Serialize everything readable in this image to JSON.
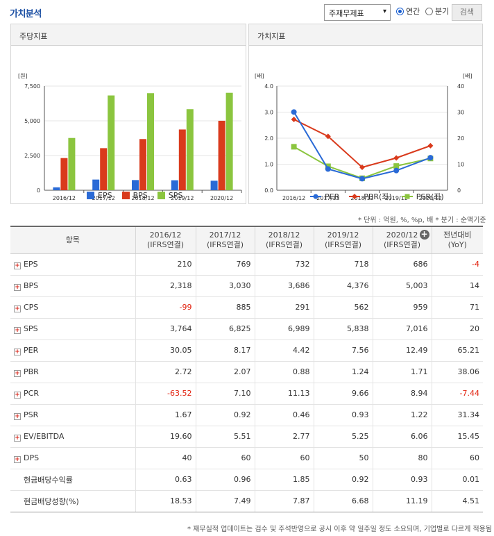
{
  "header": {
    "title": "가치분석",
    "select_value": "주재무제표",
    "radio_annual": "연간",
    "radio_quarter": "분기",
    "search_button": "검색"
  },
  "colors": {
    "eps": "#2a6ad6",
    "bps": "#d93a1c",
    "sps": "#8bc53f",
    "per": "#2a6ad6",
    "pbr": "#d93a1c",
    "psr": "#8bc53f",
    "negative": "#e2220f"
  },
  "chart_data": [
    {
      "type": "bar",
      "title": "주당지표",
      "ylabel": "[원]",
      "categories": [
        "2016/12",
        "2017/12",
        "2018/12",
        "2019/12",
        "2020/12"
      ],
      "ylim": [
        0,
        7500
      ],
      "yticks": [
        "7,500",
        "5,000",
        "2,500",
        "0"
      ],
      "series": [
        {
          "name": "EPS",
          "values": [
            210,
            769,
            732,
            718,
            686
          ]
        },
        {
          "name": "BPS",
          "values": [
            2318,
            3030,
            3686,
            4376,
            5003
          ]
        },
        {
          "name": "SPS",
          "values": [
            3764,
            6825,
            6989,
            5838,
            7016
          ]
        }
      ]
    },
    {
      "type": "line",
      "title": "가치지표",
      "ylabel_left": "[배]",
      "ylabel_right": "[배]",
      "categories": [
        "2016/12",
        "2017/12",
        "2018/12",
        "2019/12",
        "2020/12"
      ],
      "ylim_left": [
        0,
        4
      ],
      "ylim_right": [
        0,
        40
      ],
      "yticks_left": [
        "4.0",
        "3.0",
        "2.0",
        "1.0",
        "0.0"
      ],
      "yticks_right": [
        "40",
        "30",
        "20",
        "10",
        "0"
      ],
      "series": [
        {
          "name": "PER",
          "axis": "right",
          "values": [
            30.05,
            8.17,
            4.42,
            7.56,
            12.49
          ]
        },
        {
          "name": "PBR(좌)",
          "axis": "left",
          "values": [
            2.72,
            2.07,
            0.88,
            1.24,
            1.71
          ]
        },
        {
          "name": "PSR(좌)",
          "axis": "left",
          "values": [
            1.67,
            0.92,
            0.46,
            0.93,
            1.22
          ]
        }
      ]
    }
  ],
  "unit_note": "* 단위 : 억원, %, %p, 배    * 분기 : 순액기준",
  "table": {
    "headers": [
      {
        "l1": "항목",
        "l2": ""
      },
      {
        "l1": "2016/12",
        "l2": "(IFRS연결)"
      },
      {
        "l1": "2017/12",
        "l2": "(IFRS연결)"
      },
      {
        "l1": "2018/12",
        "l2": "(IFRS연결)"
      },
      {
        "l1": "2019/12",
        "l2": "(IFRS연결)"
      },
      {
        "l1": "2020/12",
        "l2": "(IFRS연결)"
      },
      {
        "l1": "전년대비",
        "l2": "(YoY)"
      }
    ],
    "rows": [
      {
        "label": "EPS",
        "expand": true,
        "values": [
          "210",
          "769",
          "732",
          "718",
          "686",
          "-4"
        ]
      },
      {
        "label": "BPS",
        "expand": true,
        "values": [
          "2,318",
          "3,030",
          "3,686",
          "4,376",
          "5,003",
          "14"
        ]
      },
      {
        "label": "CPS",
        "expand": true,
        "values": [
          "-99",
          "885",
          "291",
          "562",
          "959",
          "71"
        ]
      },
      {
        "label": "SPS",
        "expand": true,
        "values": [
          "3,764",
          "6,825",
          "6,989",
          "5,838",
          "7,016",
          "20"
        ]
      },
      {
        "label": "PER",
        "expand": true,
        "values": [
          "30.05",
          "8.17",
          "4.42",
          "7.56",
          "12.49",
          "65.21"
        ]
      },
      {
        "label": "PBR",
        "expand": true,
        "values": [
          "2.72",
          "2.07",
          "0.88",
          "1.24",
          "1.71",
          "38.06"
        ]
      },
      {
        "label": "PCR",
        "expand": true,
        "values": [
          "-63.52",
          "7.10",
          "11.13",
          "9.66",
          "8.94",
          "-7.44"
        ]
      },
      {
        "label": "PSR",
        "expand": true,
        "values": [
          "1.67",
          "0.92",
          "0.46",
          "0.93",
          "1.22",
          "31.34"
        ]
      },
      {
        "label": "EV/EBITDA",
        "expand": true,
        "values": [
          "19.60",
          "5.51",
          "2.77",
          "5.25",
          "6.06",
          "15.45"
        ]
      },
      {
        "label": "DPS",
        "expand": true,
        "values": [
          "40",
          "60",
          "60",
          "50",
          "80",
          "60"
        ]
      },
      {
        "label": "현금배당수익률",
        "expand": false,
        "values": [
          "0.63",
          "0.96",
          "1.85",
          "0.92",
          "0.93",
          "0.01"
        ]
      },
      {
        "label": "현금배당성향(%)",
        "expand": false,
        "values": [
          "18.53",
          "7.49",
          "7.87",
          "6.68",
          "11.19",
          "4.51"
        ]
      }
    ]
  },
  "footnote": "* 재무실적 업데이트는 검수 및 주석반영으로 공시 이후 약 일주일 정도 소요되며, 기업별로 다르게 적용됨"
}
